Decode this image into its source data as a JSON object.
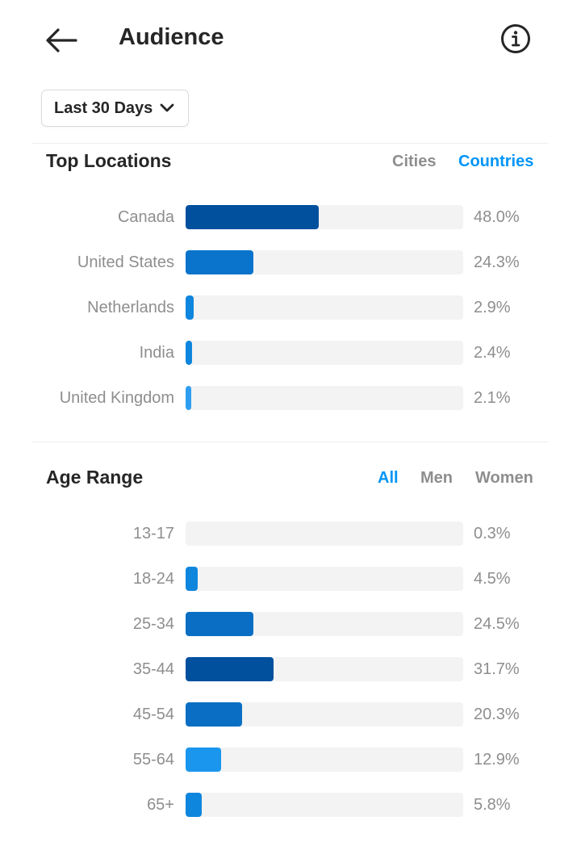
{
  "header": {
    "title": "Audience",
    "back_icon": "arrow-left-icon",
    "info_icon": "info-circle-icon"
  },
  "date_range": {
    "label": "Last 30 Days",
    "icon": "chevron-down-icon"
  },
  "top_locations": {
    "title": "Top Locations",
    "tabs": [
      {
        "label": "Cities",
        "active": false
      },
      {
        "label": "Countries",
        "active": true
      }
    ],
    "rows": [
      {
        "label": "Canada",
        "value": "48.0%",
        "percent": 48.0,
        "color": "#00509e"
      },
      {
        "label": "United States",
        "value": "24.3%",
        "percent": 24.3,
        "color": "#0a74cc"
      },
      {
        "label": "Netherlands",
        "value": "2.9%",
        "percent": 2.9,
        "color": "#0f86de"
      },
      {
        "label": "India",
        "value": "2.4%",
        "percent": 2.4,
        "color": "#0f86de"
      },
      {
        "label": "United Kingdom",
        "value": "2.1%",
        "percent": 2.1,
        "color": "#2f9ef0"
      }
    ]
  },
  "age_range": {
    "title": "Age Range",
    "tabs": [
      {
        "label": "All",
        "active": true
      },
      {
        "label": "Men",
        "active": false
      },
      {
        "label": "Women",
        "active": false
      }
    ],
    "rows": [
      {
        "label": "13-17",
        "value": "0.3%",
        "percent": 0.3,
        "color": "#2f9ef0"
      },
      {
        "label": "18-24",
        "value": "4.5%",
        "percent": 4.5,
        "color": "#0f86de"
      },
      {
        "label": "25-34",
        "value": "24.5%",
        "percent": 24.5,
        "color": "#0a6fc4"
      },
      {
        "label": "35-44",
        "value": "31.7%",
        "percent": 31.7,
        "color": "#00509e"
      },
      {
        "label": "45-54",
        "value": "20.3%",
        "percent": 20.3,
        "color": "#0a6fc4"
      },
      {
        "label": "55-64",
        "value": "12.9%",
        "percent": 12.9,
        "color": "#1a96ee"
      },
      {
        "label": "65+",
        "value": "5.8%",
        "percent": 5.8,
        "color": "#0f86de"
      }
    ]
  }
}
